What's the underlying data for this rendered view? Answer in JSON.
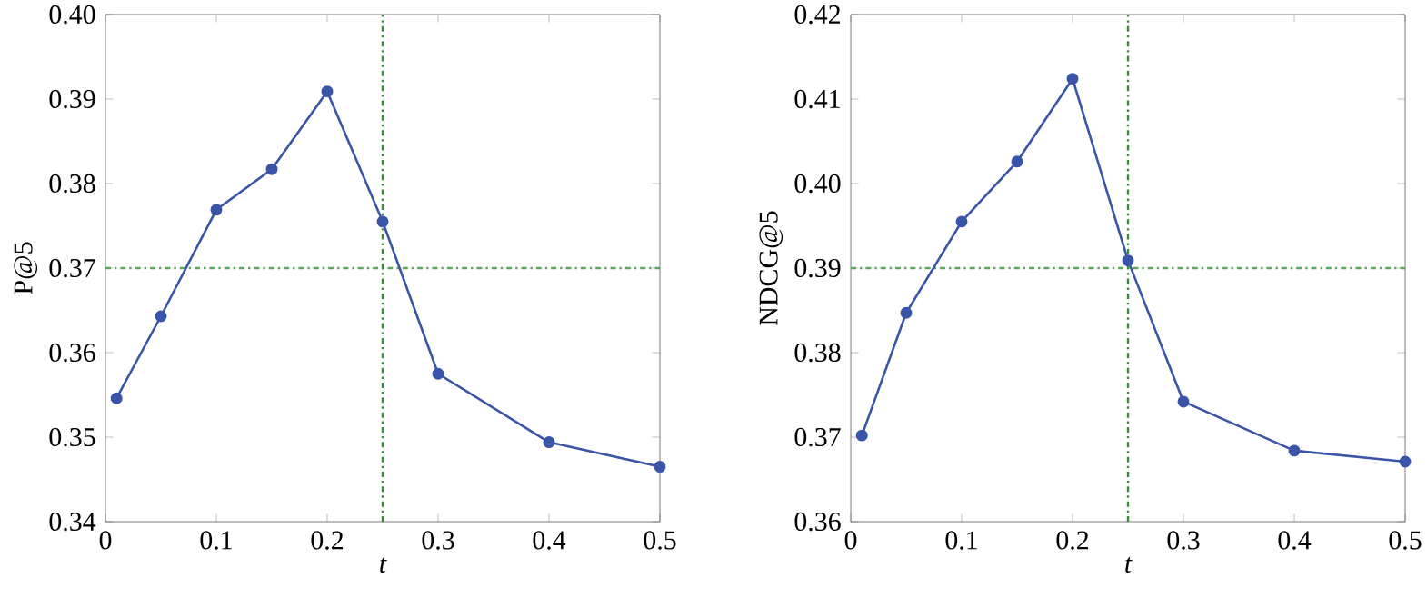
{
  "chart_data": [
    {
      "type": "line",
      "xlabel": "t",
      "ylabel": "P@5",
      "x": [
        0.01,
        0.05,
        0.1,
        0.15,
        0.2,
        0.25,
        0.3,
        0.4,
        0.5
      ],
      "series": [
        {
          "color": "#3a55a8",
          "values": [
            0.3546,
            0.3643,
            0.3769,
            0.3817,
            0.3909,
            0.3755,
            0.3575,
            0.3494,
            0.3465
          ]
        }
      ],
      "xlim": [
        0,
        0.5
      ],
      "xticks": [
        0,
        0.1,
        0.2,
        0.3,
        0.4,
        0.5
      ],
      "ylim": [
        0.34,
        0.4
      ],
      "yticks": [
        0.34,
        0.35,
        0.36,
        0.37,
        0.38,
        0.39,
        {
          "value": 0.4,
          "label": "0.40"
        }
      ],
      "marker": "circle",
      "line_style": "solid",
      "ref_lines": [
        {
          "axis": "y",
          "value": 0.37,
          "color": "#5aa85a",
          "line_style": "dashed"
        },
        {
          "axis": "x",
          "value": 0.25,
          "color": "#3a8a3a",
          "line_style": "dashed"
        }
      ]
    },
    {
      "type": "line",
      "xlabel": "t",
      "ylabel": "NDCG@5",
      "x": [
        0.01,
        0.05,
        0.1,
        0.15,
        0.2,
        0.25,
        0.3,
        0.4,
        0.5
      ],
      "series": [
        {
          "color": "#3a55a8",
          "values": [
            0.3702,
            0.3847,
            0.3955,
            0.4026,
            0.4124,
            0.3909,
            0.3742,
            0.3684,
            0.3671
          ]
        }
      ],
      "xlim": [
        0,
        0.5
      ],
      "xticks": [
        0,
        0.1,
        0.2,
        0.3,
        0.4,
        0.5
      ],
      "ylim": [
        0.36,
        0.42
      ],
      "yticks": [
        0.36,
        0.37,
        0.38,
        0.39,
        {
          "value": 0.4,
          "label": "0.40"
        },
        0.41,
        0.42
      ],
      "marker": "circle",
      "line_style": "solid",
      "ref_lines": [
        {
          "axis": "y",
          "value": 0.39,
          "color": "#5aa85a",
          "line_style": "dashed"
        },
        {
          "axis": "x",
          "value": 0.25,
          "color": "#3a8a3a",
          "line_style": "dashed"
        }
      ]
    }
  ]
}
